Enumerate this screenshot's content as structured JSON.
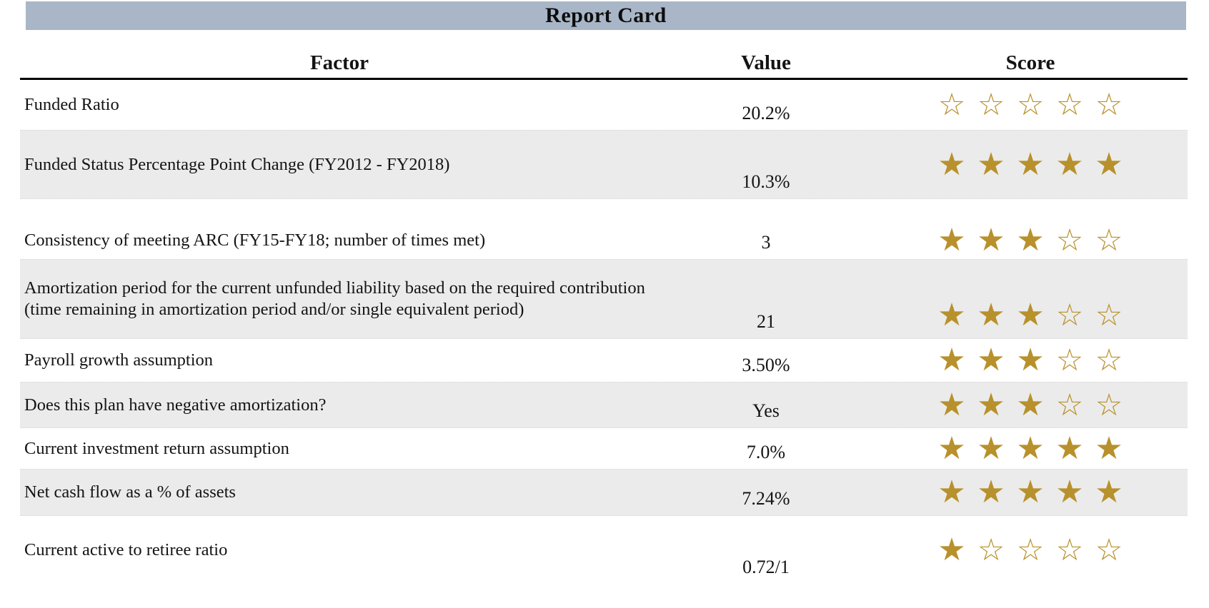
{
  "title": "Report Card",
  "colors": {
    "banner_bg": "#a9b6c7",
    "row_alt_bg": "#ebebeb",
    "star_gold": "#b8912c"
  },
  "table": {
    "headers": {
      "factor": "Factor",
      "value": "Value",
      "score": "Score"
    },
    "max_stars": 5,
    "star_glyphs": {
      "filled": "★",
      "empty": "☆"
    },
    "rows": [
      {
        "factor": "Funded Ratio",
        "value": "20.2%",
        "stars": 0,
        "alt": false,
        "spacer": false
      },
      {
        "factor": "Funded Status Percentage Point Change (FY2012 - FY2018)",
        "value": "10.3%",
        "stars": 5,
        "alt": true,
        "spacer": false
      },
      {
        "factor": "",
        "value": "",
        "stars": null,
        "alt": false,
        "spacer": true
      },
      {
        "factor": "Consistency of meeting ARC (FY15-FY18; number of times met)",
        "value": "3",
        "stars": 3,
        "alt": false,
        "spacer": false
      },
      {
        "factor": "Amortization period for the current unfunded liability based on the required contribution (time remaining in amortization period and/or single equivalent period)",
        "value": "21",
        "stars": 3,
        "alt": true,
        "spacer": false
      },
      {
        "factor": "Payroll growth assumption",
        "value": "3.50%",
        "stars": 3,
        "alt": false,
        "spacer": false
      },
      {
        "factor": "Does this plan have negative amortization?",
        "value": "Yes",
        "stars": 3,
        "alt": true,
        "spacer": false
      },
      {
        "factor": "Current investment return assumption",
        "value": "7.0%",
        "stars": 5,
        "alt": false,
        "spacer": false
      },
      {
        "factor": "Net cash flow as a % of assets",
        "value": "7.24%",
        "stars": 5,
        "alt": true,
        "spacer": false
      },
      {
        "factor": "Current active to retiree ratio",
        "value": "0.72/1",
        "stars": 1,
        "alt": false,
        "spacer": false
      }
    ]
  }
}
